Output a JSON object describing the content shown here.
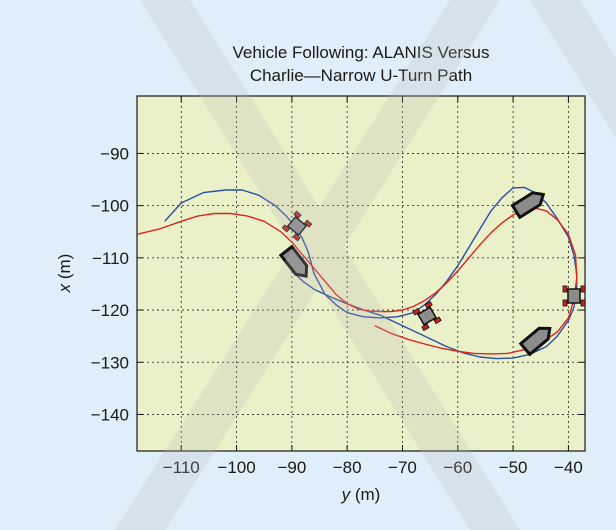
{
  "chart_data": {
    "type": "line",
    "title_line1": "Vehicle Following: ALANIS Versus",
    "title_line2": "Charlie—Narrow U-Turn Path",
    "xlabel_var": "y",
    "xlabel_unit": " (m)",
    "ylabel_var": "x",
    "ylabel_unit": " (m)",
    "xlim": [
      -118,
      -37
    ],
    "ylim": [
      -147,
      -79
    ],
    "xticks": [
      -110,
      -100,
      -90,
      -80,
      -70,
      -60,
      -50,
      -40
    ],
    "yticks": [
      -90,
      -100,
      -110,
      -120,
      -130,
      -140
    ],
    "xtick_labels": [
      "−110",
      "−100",
      "−90",
      "−80",
      "−70",
      "−60",
      "−50",
      "−40"
    ],
    "ytick_labels": [
      "−90",
      "−100",
      "−110",
      "−120",
      "−130",
      "−140"
    ],
    "grid": true,
    "colors": {
      "plot_bg": "#eaf0c8",
      "page_bg": "#dfeef8",
      "series_blue": "#2b4fa8",
      "series_red": "#e0241b",
      "grid": "#222222",
      "watermark": "#b9b9b9"
    },
    "series": [
      {
        "color": "#2b4fa8",
        "x": [
          -113,
          -110,
          -106,
          -102,
          -99,
          -96,
          -93,
          -91,
          -89,
          -88,
          -87,
          -86.5,
          -86,
          -85,
          -84,
          -82,
          -80,
          -77,
          -74,
          -71,
          -68,
          -66,
          -64,
          -62,
          -60,
          -58,
          -56,
          -54,
          -52,
          -50,
          -48,
          -46,
          -44,
          -42,
          -40,
          -39,
          -38.5,
          -38.5,
          -39,
          -40,
          -42,
          -44,
          -47,
          -50,
          -53,
          -56,
          -59,
          -62,
          -65,
          -68,
          -71,
          -74,
          -77,
          -80,
          -83,
          -86,
          -88,
          -89.5
        ],
        "y": [
          -103,
          -99.5,
          -97.5,
          -97,
          -97,
          -98,
          -100,
          -102,
          -104.5,
          -106.5,
          -109,
          -111,
          -113,
          -115,
          -117,
          -119,
          -120.5,
          -121.3,
          -121.5,
          -121.3,
          -120.5,
          -119,
          -117,
          -114.5,
          -111.5,
          -108,
          -104.5,
          -101,
          -98.5,
          -96.6,
          -96.5,
          -97.5,
          -99.5,
          -102.5,
          -106,
          -109.5,
          -113,
          -116.5,
          -119.5,
          -122,
          -125,
          -127,
          -128.5,
          -129.2,
          -129.3,
          -129,
          -128.2,
          -127,
          -125.5,
          -124,
          -122.5,
          -121,
          -120,
          -118.8,
          -117.5,
          -116,
          -114.5,
          -113
        ]
      },
      {
        "color": "#e0241b",
        "x": [
          -118,
          -114,
          -110,
          -107,
          -104,
          -101,
          -98,
          -95,
          -92,
          -90,
          -88,
          -86,
          -84,
          -82,
          -80,
          -78,
          -76,
          -74,
          -72,
          -70,
          -68,
          -66,
          -64,
          -62,
          -60,
          -58,
          -56,
          -54,
          -52,
          -50,
          -48,
          -46,
          -44,
          -42,
          -40,
          -38.7,
          -38.5,
          -39,
          -40,
          -42,
          -45,
          -48,
          -51,
          -54,
          -57,
          -60,
          -63,
          -66,
          -69,
          -72,
          -75
        ],
        "y": [
          -105.5,
          -104.5,
          -103,
          -102,
          -101.5,
          -101.5,
          -102,
          -103,
          -105,
          -107,
          -109.5,
          -112,
          -114.5,
          -117,
          -118.8,
          -119.8,
          -120.2,
          -120.3,
          -120.3,
          -120,
          -119.3,
          -118.2,
          -116.7,
          -114.8,
          -112.5,
          -110,
          -107.5,
          -105.2,
          -103.3,
          -101.8,
          -100.8,
          -100.5,
          -101,
          -102.7,
          -105.5,
          -109.5,
          -114,
          -118,
          -121.5,
          -124.2,
          -126.3,
          -127.6,
          -128.3,
          -128.4,
          -128.3,
          -127.9,
          -127.3,
          -126.5,
          -125.6,
          -124.5,
          -123
        ]
      }
    ]
  }
}
